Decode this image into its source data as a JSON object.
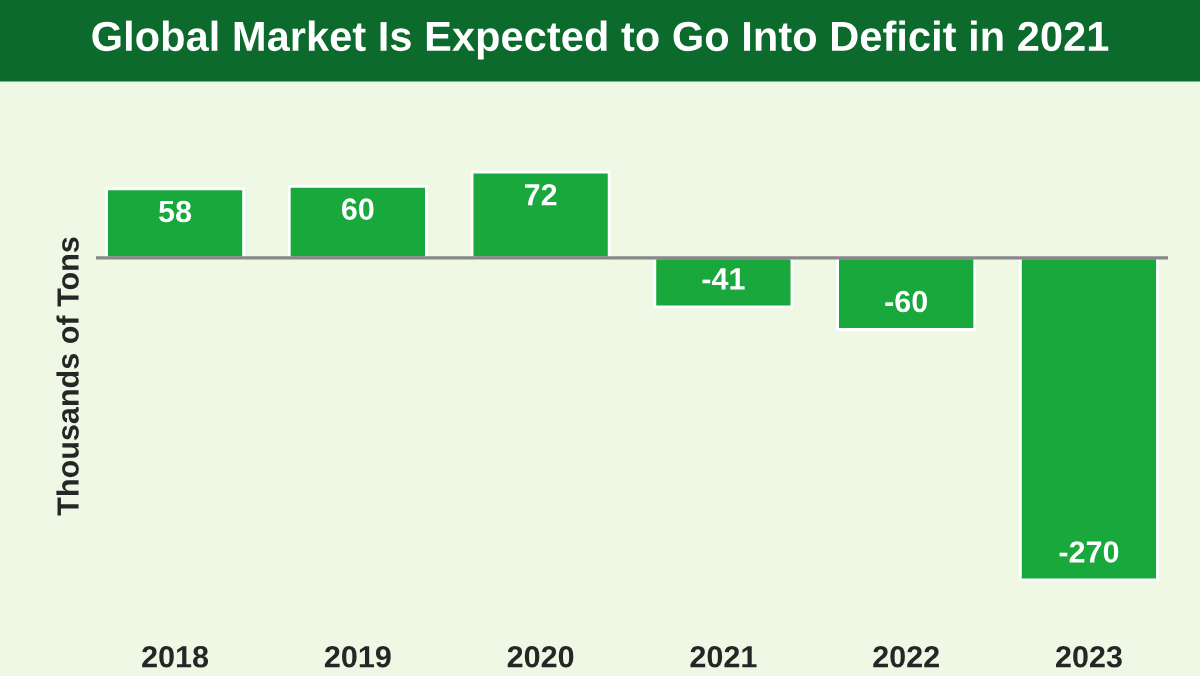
{
  "chart_data": {
    "type": "bar",
    "title": "Global Market Is Expected to Go Into Deficit in 2021",
    "ylabel": "Thousands of Tons",
    "categories": [
      "2018",
      "2019",
      "2020",
      "2021",
      "2022",
      "2023"
    ],
    "values": [
      58,
      60,
      72,
      -41,
      -60,
      -270
    ],
    "color": "#18a83c",
    "data_labels": true,
    "grid": false,
    "legend": false
  }
}
